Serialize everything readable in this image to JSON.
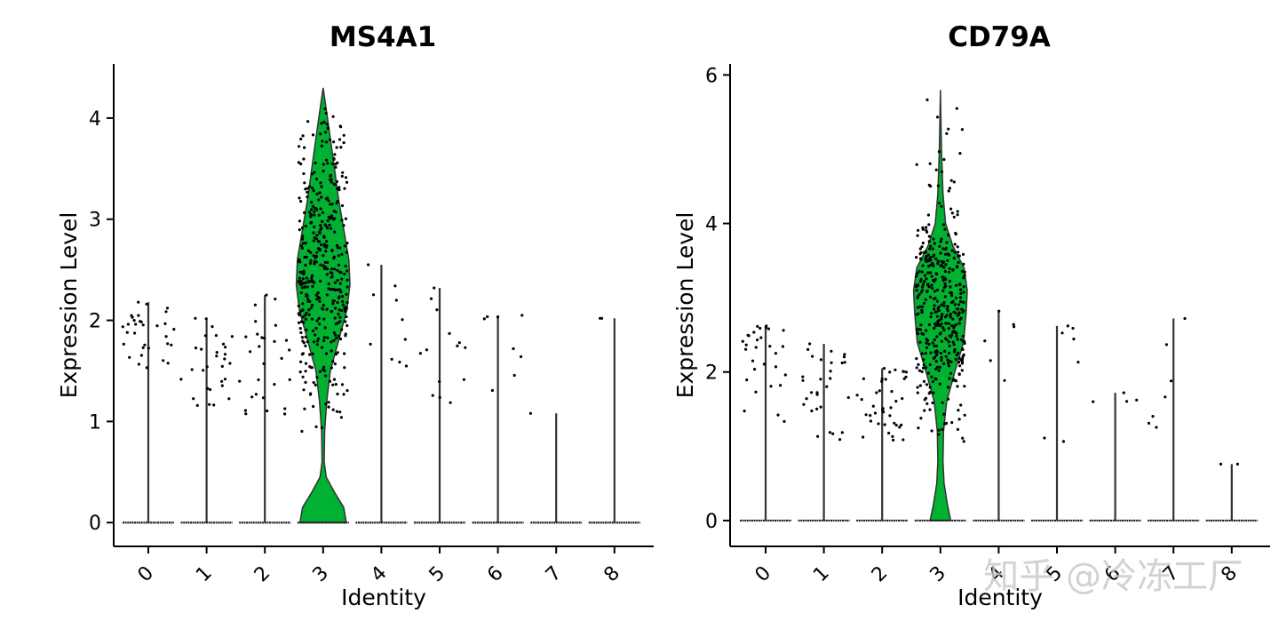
{
  "chart_data": [
    {
      "type": "violin",
      "title": "MS4A1",
      "xlabel": "Identity",
      "ylabel": "Expression Level",
      "categories": [
        "0",
        "1",
        "2",
        "3",
        "4",
        "5",
        "6",
        "7",
        "8"
      ],
      "yticks": [
        0,
        1,
        2,
        3,
        4
      ],
      "ylim": [
        -0.2,
        4.5
      ],
      "color": "#00b132",
      "max": [
        2.18,
        2.02,
        2.25,
        4.3,
        2.55,
        2.32,
        2.05,
        1.08,
        2.02
      ],
      "nonzero_range": [
        [
          1.45,
          2.18
        ],
        [
          1.15,
          2.02
        ],
        [
          0.95,
          2.25
        ],
        [
          0.9,
          4.3
        ],
        [
          1.35,
          2.55
        ],
        [
          1.1,
          2.32
        ],
        [
          1.25,
          2.05
        ],
        [
          1.08,
          1.08
        ],
        [
          2.02,
          2.02
        ]
      ],
      "nonzero_count": [
        32,
        30,
        28,
        420,
        10,
        14,
        8,
        1,
        2
      ],
      "highlight": 3,
      "violin_profile": [
        [
          0,
          0.45
        ],
        [
          0.15,
          0.4
        ],
        [
          0.3,
          0.22
        ],
        [
          0.45,
          0.06
        ],
        [
          0.6,
          0.02
        ],
        [
          0.9,
          0.03
        ],
        [
          1.2,
          0.07
        ],
        [
          1.5,
          0.14
        ],
        [
          1.8,
          0.3
        ],
        [
          2.1,
          0.46
        ],
        [
          2.35,
          0.52
        ],
        [
          2.6,
          0.5
        ],
        [
          2.9,
          0.4
        ],
        [
          3.2,
          0.3
        ],
        [
          3.5,
          0.22
        ],
        [
          3.8,
          0.14
        ],
        [
          4.05,
          0.07
        ],
        [
          4.3,
          0.0
        ]
      ]
    },
    {
      "type": "violin",
      "title": "CD79A",
      "xlabel": "Identity",
      "ylabel": "Expression Level",
      "categories": [
        "0",
        "1",
        "2",
        "3",
        "4",
        "5",
        "6",
        "7",
        "8"
      ],
      "yticks": [
        0,
        2,
        4,
        6
      ],
      "ylim": [
        -0.3,
        6.1
      ],
      "color": "#00b132",
      "max": [
        2.62,
        2.38,
        2.05,
        5.8,
        2.82,
        2.62,
        1.72,
        2.72,
        0.76
      ],
      "nonzero_range": [
        [
          1.3,
          2.62
        ],
        [
          1.05,
          2.38
        ],
        [
          1.05,
          2.05
        ],
        [
          1.0,
          5.8
        ],
        [
          1.7,
          2.82
        ],
        [
          1.05,
          2.62
        ],
        [
          1.6,
          1.72
        ],
        [
          0.98,
          2.72
        ],
        [
          0.76,
          0.76
        ]
      ],
      "nonzero_count": [
        30,
        30,
        40,
        420,
        6,
        7,
        4,
        7,
        2
      ],
      "highlight": 3,
      "violin_profile": [
        [
          0,
          0.2
        ],
        [
          0.2,
          0.14
        ],
        [
          0.5,
          0.07
        ],
        [
          0.8,
          0.05
        ],
        [
          1.2,
          0.06
        ],
        [
          1.6,
          0.12
        ],
        [
          2.0,
          0.28
        ],
        [
          2.4,
          0.45
        ],
        [
          2.8,
          0.5
        ],
        [
          3.1,
          0.52
        ],
        [
          3.4,
          0.46
        ],
        [
          3.7,
          0.24
        ],
        [
          4.0,
          0.1
        ],
        [
          4.4,
          0.05
        ],
        [
          5.0,
          0.02
        ],
        [
          5.8,
          0.0
        ]
      ]
    }
  ],
  "watermark": "知乎 @冷冻工厂"
}
